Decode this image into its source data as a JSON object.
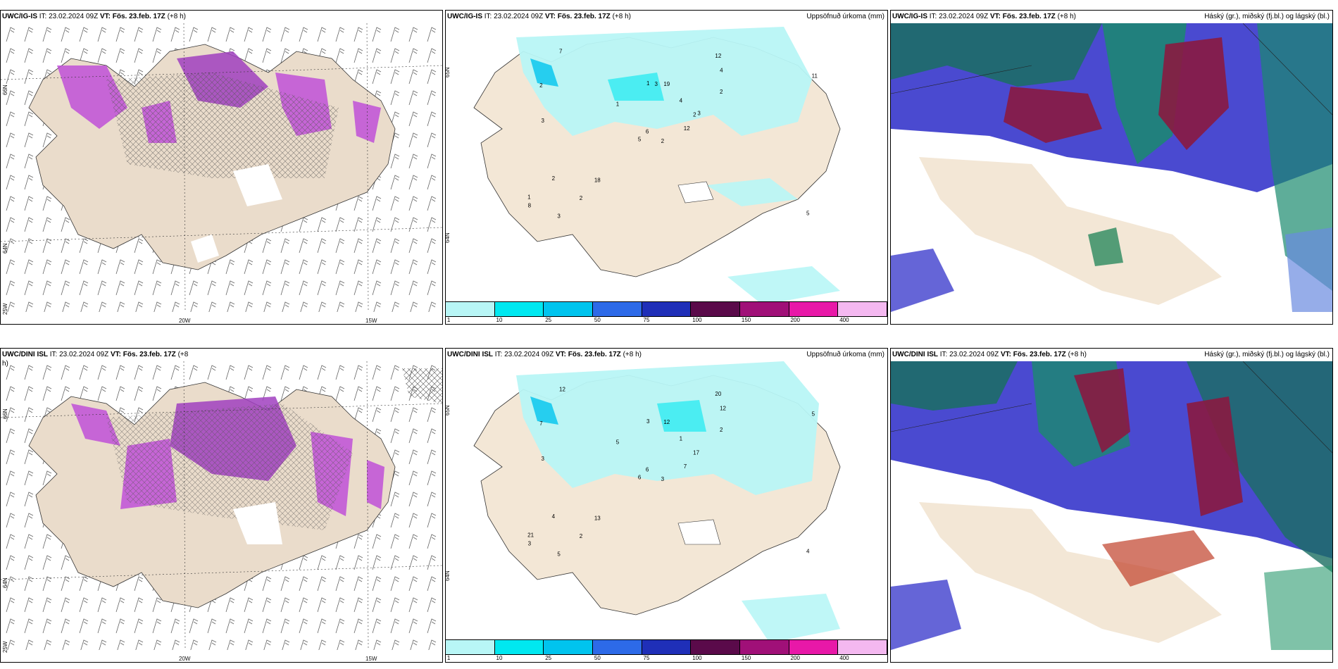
{
  "rows": [
    {
      "wind": {
        "title_model": "UWC/IG-IS",
        "title_it": "IT: 23.02.2024 09Z",
        "title_vt": "VT: Fös. 23.feb. 17Z",
        "title_lead": "(+8 h)",
        "lat_labels": [
          "66N",
          "64N",
          "25W"
        ],
        "lon_labels": [
          "20W",
          "15W"
        ]
      },
      "precip": {
        "title_model": "UWC/IG-IS",
        "title_it": "IT: 23.02.2024 09Z",
        "title_vt": "VT: Fös. 23.feb. 17Z",
        "title_lead": "(+8 h)",
        "title_right": "Uppsöfnuð úrkoma (mm)",
        "lat_labels": [
          "65N",
          "64N"
        ]
      },
      "cloud": {
        "title_model": "UWC/IG-IS",
        "title_it": "IT: 23.02.2024 09Z",
        "title_vt": "VT: Fös. 23.feb. 17Z",
        "title_lead": "(+8 h)",
        "title_right": "Háský (gr.), miðský (fj.bl.) og lágský (bl.)"
      }
    },
    {
      "wind": {
        "title_model": "UWC/DINI ISL",
        "title_it": "IT: 23.02.2024 09Z",
        "title_vt": "VT: Fös. 23.feb. 17Z",
        "title_lead": "(+8",
        "title_lead2": "h)",
        "lat_labels": [
          "66N",
          "64N",
          "25W"
        ],
        "lon_labels": [
          "20W",
          "15W"
        ]
      },
      "precip": {
        "title_model": "UWC/DINI ISL",
        "title_it": "IT: 23.02.2024 09Z",
        "title_vt": "VT: Fös. 23.feb. 17Z",
        "title_lead": "(+8 h)",
        "title_right": "Uppsöfnuð úrkoma (mm)",
        "lat_labels": [
          "65N",
          "64N"
        ]
      },
      "cloud": {
        "title_model": "UWC/DINI ISL",
        "title_it": "IT: 23.02.2024 09Z",
        "title_vt": "VT: Fös. 23.feb. 17Z",
        "title_lead": "(+8 h)",
        "title_right": "Háský (gr.), miðský (fj.bl.) og lágský (bl.)"
      }
    }
  ],
  "colorbar": {
    "labels": [
      "1",
      "10",
      "25",
      "50",
      "75",
      "100",
      "150",
      "200",
      "400"
    ],
    "colors": [
      "#b8f6f6",
      "#00e8f0",
      "#00c4ee",
      "#2d6ae8",
      "#1f2fb8",
      "#5a0a4a",
      "#a01078",
      "#e818a8",
      "#f4b8f0"
    ]
  },
  "colors": {
    "land": "#f3e7d6",
    "land_wind": "#eadccb",
    "precip_light": "#b8f6f6",
    "snow_purple": "#c050d8",
    "cloud_blue": "#4a4ad0",
    "cloud_green": "#1a8a6e",
    "cloud_red": "#8a1a40"
  },
  "precip_labels_top": [
    "2",
    "2",
    "6",
    "1",
    "2",
    "18",
    "12",
    "19",
    "4",
    "12",
    "7",
    "5",
    "3",
    "11",
    "5",
    "2",
    "3",
    "1",
    "4",
    "2",
    "1",
    "8",
    "2",
    "3",
    "3"
  ],
  "precip_labels_bottom": [
    "3",
    "7",
    "6",
    "21",
    "17",
    "13",
    "20",
    "12",
    "12",
    "7",
    "12",
    "4",
    "3",
    "5",
    "6",
    "2",
    "5",
    "3",
    "1",
    "4",
    "5",
    "3",
    "2"
  ]
}
